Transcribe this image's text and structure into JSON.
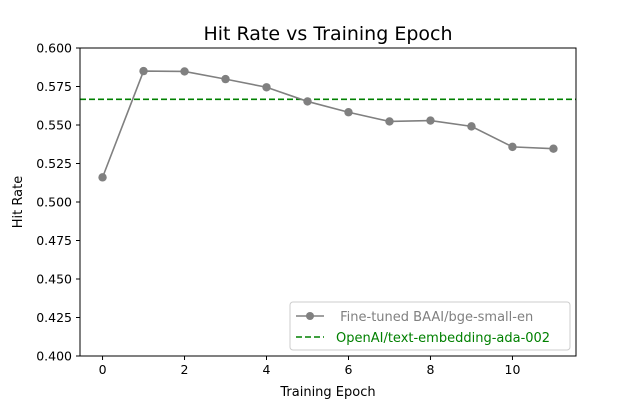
{
  "chart_data": {
    "type": "line",
    "title": "Hit Rate vs Training Epoch",
    "xlabel": "Training Epoch",
    "ylabel": "Hit Rate",
    "xlim": [
      -0.55,
      11.55
    ],
    "ylim": [
      0.4,
      0.6
    ],
    "xticks": [
      0,
      2,
      4,
      6,
      8,
      10
    ],
    "yticks": [
      "0.400",
      "0.425",
      "0.450",
      "0.475",
      "0.500",
      "0.525",
      "0.550",
      "0.575",
      "0.600"
    ],
    "grid": false,
    "legend_position": "lower-right",
    "series": [
      {
        "name": " Fine-tuned BAAI/bge-small-en",
        "kind": "line-with-markers",
        "color": "#808080",
        "x": [
          0,
          1,
          2,
          3,
          4,
          5,
          6,
          7,
          8,
          9,
          10,
          11
        ],
        "y": [
          0.516,
          0.585,
          0.5848,
          0.5798,
          0.5745,
          0.5653,
          0.5583,
          0.5523,
          0.5529,
          0.5491,
          0.5358,
          0.5346
        ]
      },
      {
        "name": "OpenAI/text-embedding-ada-002",
        "kind": "horizontal-dashed",
        "color": "#008000",
        "y": 0.5667
      }
    ]
  }
}
